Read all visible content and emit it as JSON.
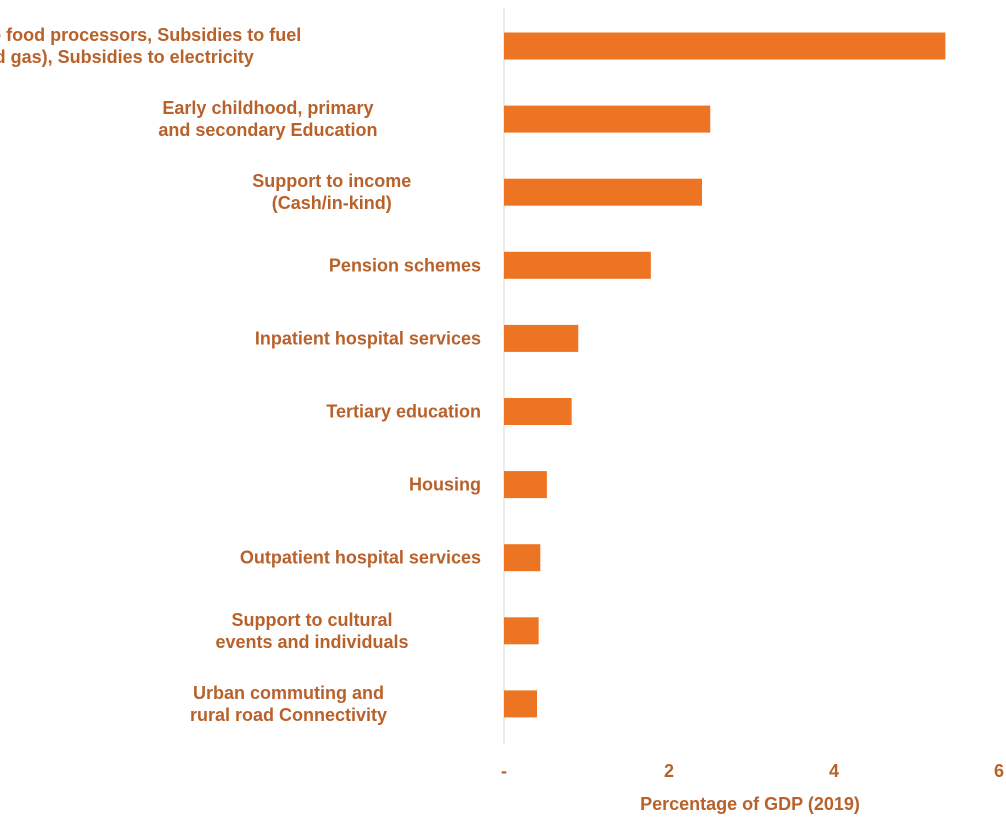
{
  "chart_data": {
    "type": "bar",
    "orientation": "horizontal",
    "title": "",
    "xlabel": "Percentage of GDP (2019)",
    "ylabel": "",
    "categories": [
      [
        "Subsidies to food processors, Subsidies to fuel",
        "(oil and gas), Subsidies to electricity"
      ],
      [
        "Early childhood, primary",
        "and secondary Education"
      ],
      [
        "Support to income",
        "(Cash/in-kind)"
      ],
      [
        "Pension schemes"
      ],
      [
        "Inpatient hospital services"
      ],
      [
        "Tertiary education"
      ],
      [
        "Housing"
      ],
      [
        "Outpatient hospital services"
      ],
      [
        "Support to cultural",
        "events and individuals"
      ],
      [
        "Urban commuting and",
        "rural road Connectivity"
      ]
    ],
    "values": [
      5.35,
      2.5,
      2.4,
      1.78,
      0.9,
      0.82,
      0.52,
      0.44,
      0.42,
      0.4
    ],
    "xlim": [
      0,
      6
    ],
    "xticks": [
      {
        "value": 0,
        "label": "-"
      },
      {
        "value": 2,
        "label": "2"
      },
      {
        "value": 4,
        "label": "4"
      },
      {
        "value": 6,
        "label": "6"
      }
    ],
    "grid": false,
    "legend": "none",
    "colors": {
      "bar": "#ED7422",
      "text": "#B8612A",
      "axis": "#D9D9D9"
    }
  }
}
